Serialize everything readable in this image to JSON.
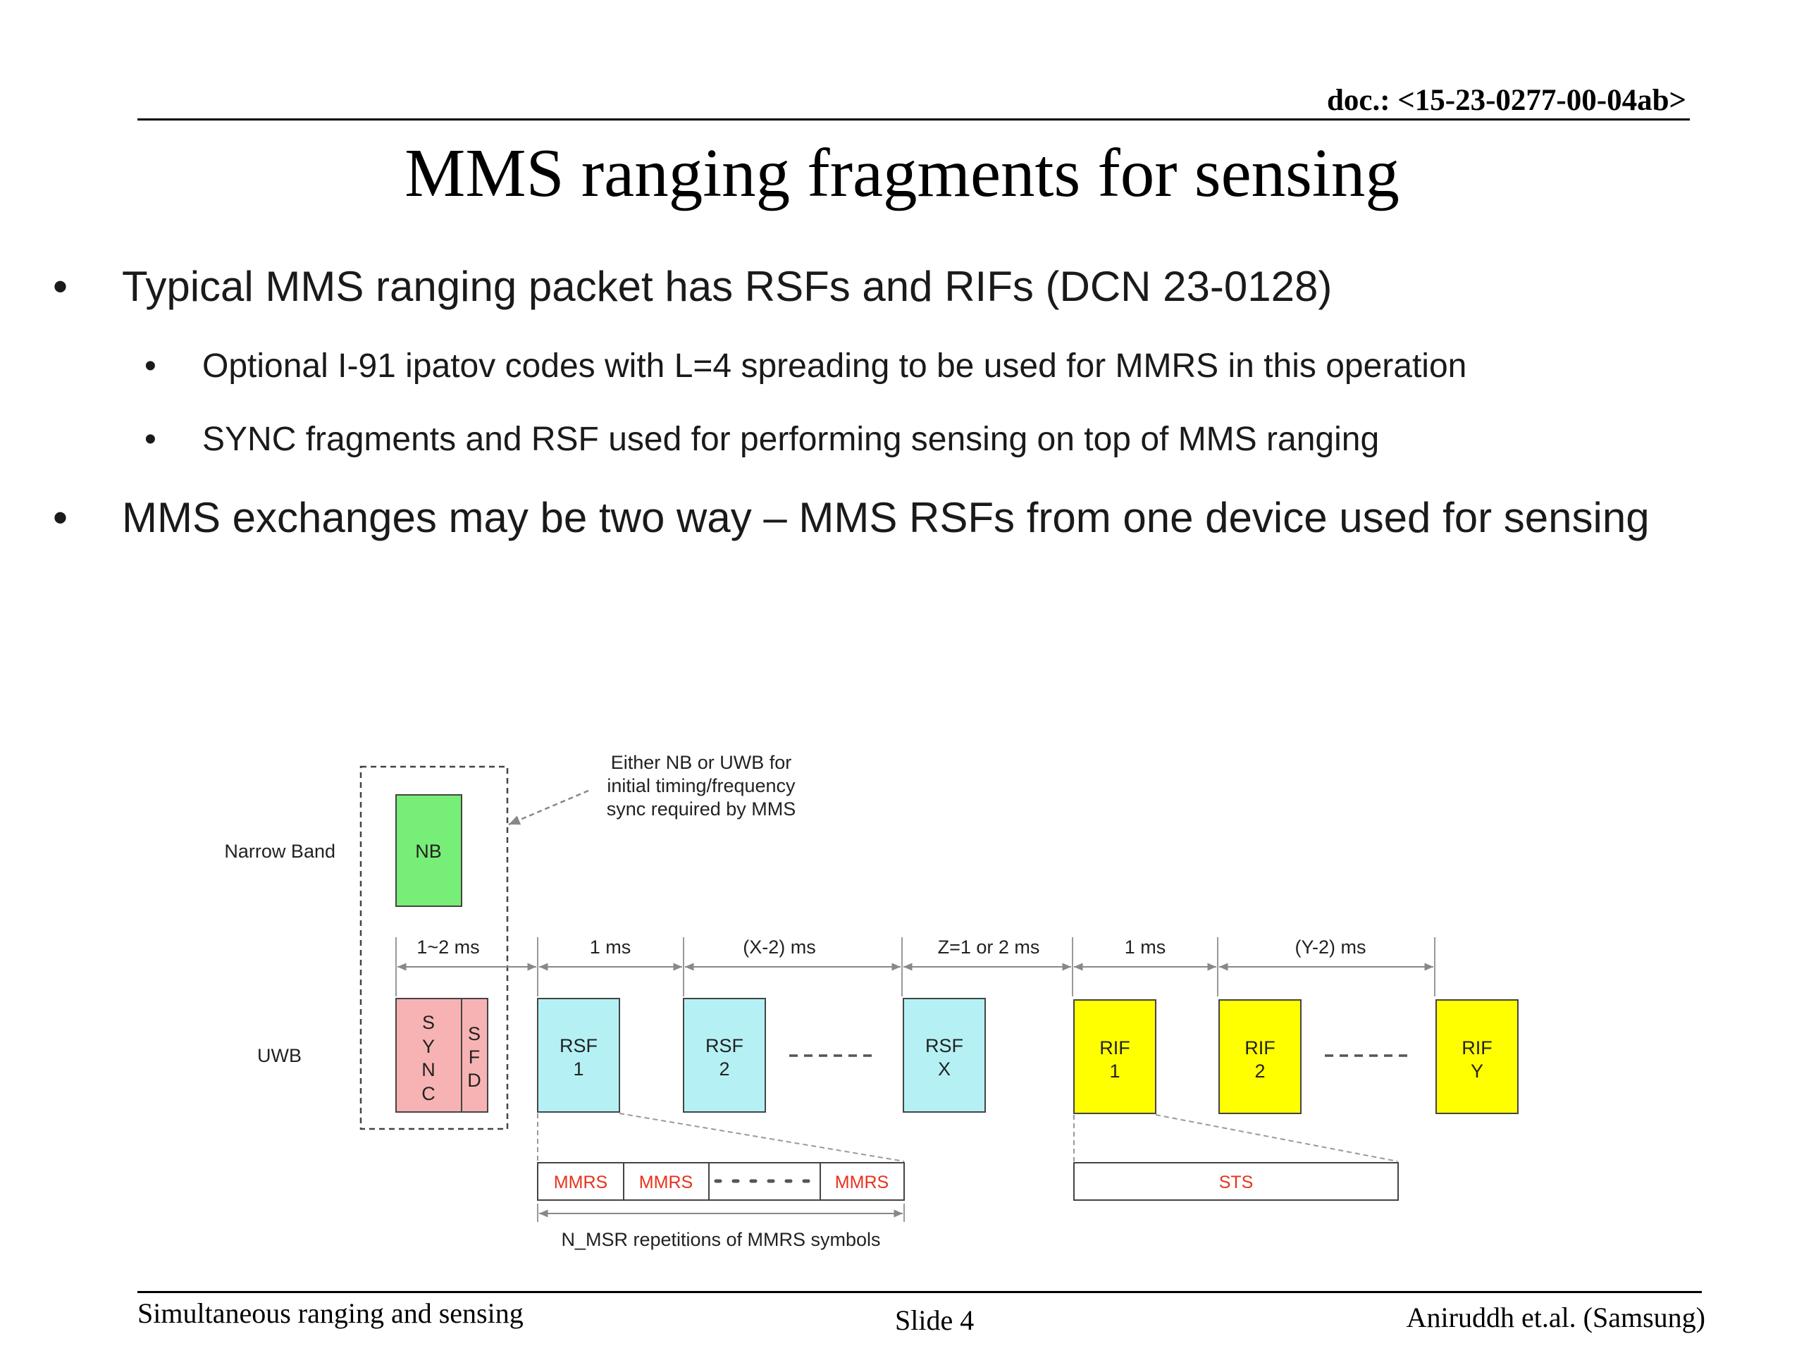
{
  "header": {
    "doc_id": "doc.: <15-23-0277-00-04ab>"
  },
  "title": "MMS ranging fragments for sensing",
  "bullets": [
    {
      "text": "Typical MMS ranging packet has RSFs and RIFs (DCN 23-0128)",
      "sub": [
        "Optional I-91 ipatov codes with L=4 spreading to be used for MMRS in this operation",
        "SYNC fragments and RSF used for performing sensing on top of MMS ranging"
      ]
    },
    {
      "text": "MMS exchanges may be two way – MMS RSFs from one device used for sensing",
      "sub": []
    }
  ],
  "bullet_glyph": "•",
  "diagram": {
    "row_labels": {
      "narrow_band": "Narrow Band",
      "uwb": "UWB"
    },
    "callout": [
      "Either NB or UWB for",
      "initial timing/frequency",
      "sync required by MMS"
    ],
    "nb_block": "NB",
    "sync_letters": [
      "S",
      "Y",
      "N",
      "C"
    ],
    "sfd_letters": [
      "S",
      "F",
      "D"
    ],
    "durations": [
      "1~2 ms",
      "1 ms",
      "(X-2) ms",
      "Z=1 or 2 ms",
      "1 ms",
      "(Y-2) ms"
    ],
    "rsf_blocks": [
      {
        "name": "RSF",
        "index": "1"
      },
      {
        "name": "RSF",
        "index": "2"
      },
      {
        "name": "RSF",
        "index": "X"
      }
    ],
    "rif_blocks": [
      {
        "name": "RIF",
        "index": "1"
      },
      {
        "name": "RIF",
        "index": "2"
      },
      {
        "name": "RIF",
        "index": "Y"
      }
    ],
    "mmrs_cells": [
      "MMRS",
      "MMRS",
      "MMRS"
    ],
    "sts_cell": "STS",
    "repetition_label": "N_MSR repetitions of MMRS symbols",
    "colors": {
      "nb": "#77ee77",
      "sync": "#f7b3b3",
      "rsf": "#b5f1f4",
      "rif": "#ffff00",
      "mmrs_text": "#e8321e"
    }
  },
  "footer": {
    "left": "Simultaneous ranging and sensing",
    "center": "Slide 4",
    "right": "Aniruddh et.al. (Samsung)"
  }
}
